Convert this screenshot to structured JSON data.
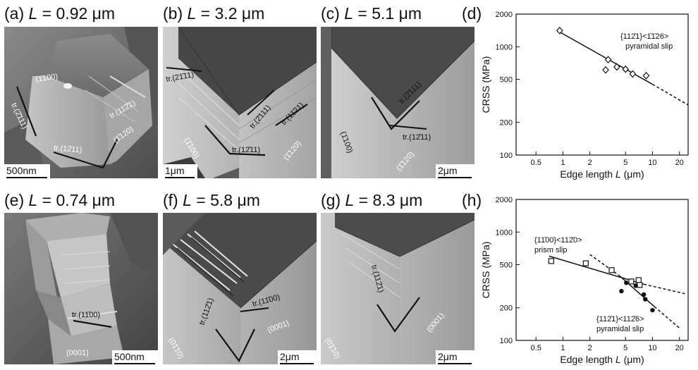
{
  "panels": [
    {
      "id": "a",
      "title_prefix": "(a) ",
      "title_var": "L",
      "title_value": " = 0.92 μm",
      "scale": "500nm",
      "labels": [
        "(1̄100)",
        "tr.(2̄111)",
        "tr.(11̄2̄1)",
        "tr.(12̄11)",
        "(1̄120)"
      ]
    },
    {
      "id": "b",
      "title_prefix": "(b) ",
      "title_var": "L",
      "title_value": " = 3.2 μm",
      "scale": "1μm",
      "labels": [
        "tr.(21̄11)",
        "tr.(2̄111)",
        "tr.(11̄21)",
        "(1̄100)",
        "tr.(12̄11)",
        "(1̄120)"
      ]
    },
    {
      "id": "c",
      "title_prefix": "(c) ",
      "title_var": "L",
      "title_value": " = 5.1 μm",
      "scale": "2μm",
      "labels": [
        "tr.(2̄111)",
        "tr.(12̄11)",
        "(1̄100)",
        "(1̄120)"
      ]
    },
    {
      "id": "e",
      "title_prefix": "(e) ",
      "title_var": "L",
      "title_value": " = 0.74 μm",
      "scale": "500nm",
      "labels": [
        "tr.(11̄00)",
        "(0001)"
      ]
    },
    {
      "id": "f",
      "title_prefix": "(f) ",
      "title_var": "L",
      "title_value": " = 5.8 μm",
      "scale": "2μm",
      "labels": [
        "tr.(11̄00)",
        "tr.(112̄1)",
        "(01̄10)",
        "(0001)"
      ]
    },
    {
      "id": "g",
      "title_prefix": "(g) ",
      "title_var": "L",
      "title_value": " = 8.3 μm",
      "scale": "2μm",
      "labels": [
        "tr.(112̄1)",
        "(01̄10)",
        "(0001)"
      ]
    }
  ],
  "chart_data": [
    {
      "panel": "(d)",
      "type": "scatter",
      "xscale": "log",
      "yscale": "log",
      "xlim": [
        0.3,
        25
      ],
      "ylim": [
        100,
        2000
      ],
      "xticks": [
        0.5,
        1,
        2,
        5,
        10,
        20
      ],
      "xtick_labels": [
        "0.5",
        "1",
        "2",
        "5",
        "10",
        "20"
      ],
      "yticks": [
        100,
        200,
        500,
        1000,
        2000
      ],
      "ytick_labels": [
        "100",
        "200",
        "500",
        "1000",
        "2000"
      ],
      "xlabel_prefix": "Edge length ",
      "xlabel_var": "L",
      "xlabel_suffix": " (μm)",
      "ylabel": "CRSS (MPa)",
      "annotations": [
        "{112̄1}<1̄1̄26>",
        "pyramidal slip"
      ],
      "series": [
        {
          "marker": "diamond-open",
          "x": [
            0.92,
            3.0,
            3.2,
            4.0,
            5.0,
            6.0,
            8.5
          ],
          "y": [
            1410,
            610,
            760,
            650,
            620,
            560,
            540
          ]
        }
      ],
      "fits": [
        {
          "style": "solid",
          "x": [
            0.9,
            10
          ],
          "y": [
            1380,
            450
          ]
        },
        {
          "style": "dashed",
          "x": [
            10,
            25
          ],
          "y": [
            450,
            290
          ]
        }
      ]
    },
    {
      "panel": "(h)",
      "type": "scatter",
      "xscale": "log",
      "yscale": "log",
      "xlim": [
        0.3,
        25
      ],
      "ylim": [
        100,
        2000
      ],
      "xticks": [
        0.5,
        1,
        2,
        5,
        10,
        20
      ],
      "xtick_labels": [
        "0.5",
        "1",
        "2",
        "5",
        "10",
        "20"
      ],
      "yticks": [
        100,
        200,
        500,
        1000,
        2000
      ],
      "ytick_labels": [
        "100",
        "200",
        "500",
        "1000",
        "2000"
      ],
      "xlabel_prefix": "Edge length ",
      "xlabel_var": "L",
      "xlabel_suffix": " (μm)",
      "ylabel": "CRSS (MPa)",
      "annotations": [
        "{11̄00}<112̄0>",
        "prism slip",
        "{112̄1}<112̄6>",
        "pyramidal slip"
      ],
      "series": [
        {
          "marker": "square-open",
          "x": [
            0.74,
            1.8,
            3.5,
            5.8,
            7.0,
            7.2
          ],
          "y": [
            540,
            515,
            445,
            350,
            360,
            325
          ]
        },
        {
          "marker": "circle-filled",
          "x": [
            4.5,
            5.1,
            6.5,
            8.0,
            8.3,
            10.0
          ],
          "y": [
            285,
            340,
            320,
            265,
            240,
            190
          ]
        }
      ],
      "fits": [
        {
          "style": "solid",
          "x": [
            0.7,
            8.0
          ],
          "y": [
            600,
            330
          ]
        },
        {
          "style": "dashed",
          "x": [
            8.0,
            23.0
          ],
          "y": [
            330,
            270
          ]
        },
        {
          "style": "solid",
          "x": [
            4.2,
            10.5
          ],
          "y": [
            400,
            205
          ]
        },
        {
          "style": "dashed",
          "x": [
            2.0,
            4.2
          ],
          "y": [
            620,
            400
          ]
        },
        {
          "style": "dashed",
          "x": [
            10.5,
            20
          ],
          "y": [
            205,
            130
          ]
        }
      ]
    }
  ]
}
